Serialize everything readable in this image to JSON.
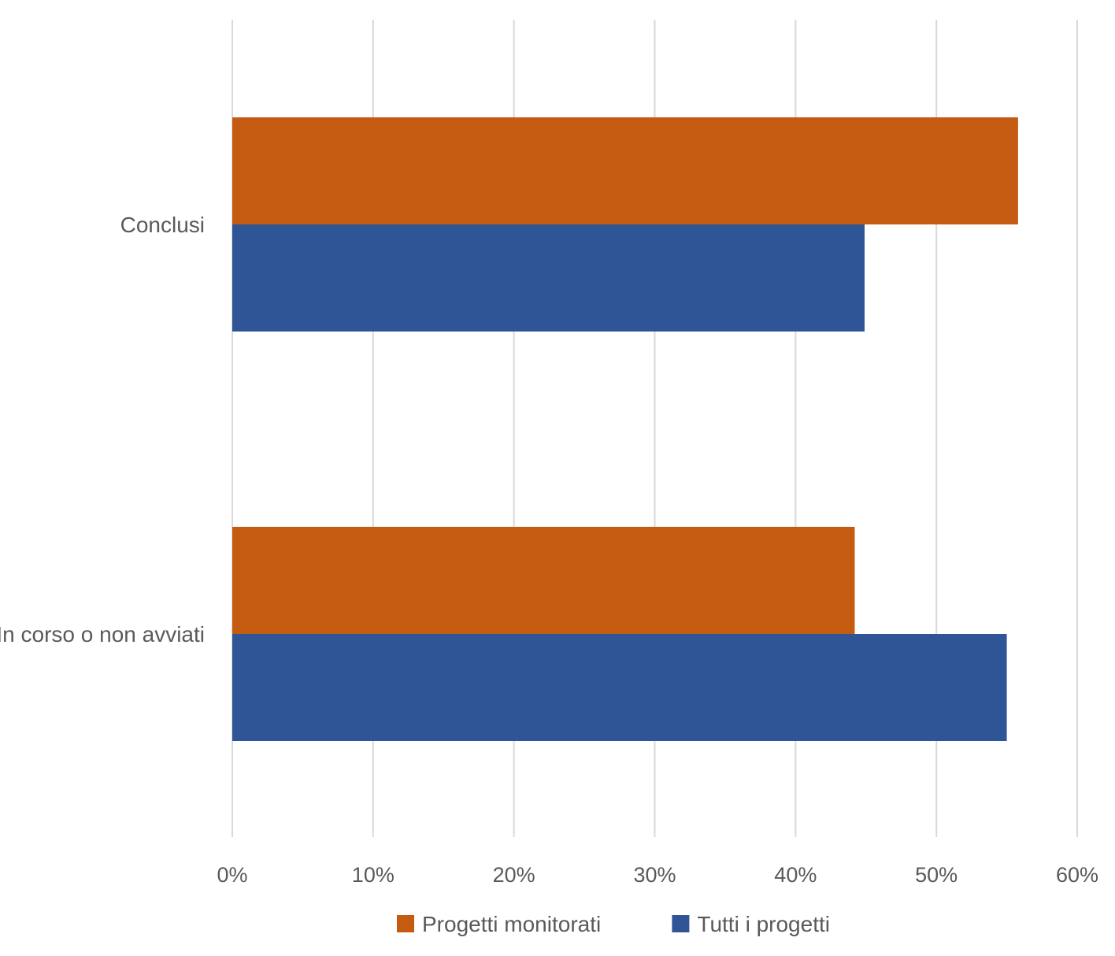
{
  "chart_data": {
    "type": "bar",
    "orientation": "horizontal",
    "categories": [
      "Conclusi",
      "In corso o non avviati"
    ],
    "series": [
      {
        "name": "Progetti monitorati",
        "color": "#C55A11",
        "values": [
          55.8,
          44.2
        ]
      },
      {
        "name": "Tutti i progetti",
        "color": "#2F5597",
        "values": [
          44.9,
          55.0
        ]
      }
    ],
    "xlim": [
      0,
      60
    ],
    "xticks": [
      0,
      10,
      20,
      30,
      40,
      50,
      60
    ],
    "tick_format": "%",
    "grid": "vertical",
    "legend_position": "bottom",
    "title": "",
    "xlabel": "",
    "ylabel": ""
  },
  "colors": {
    "grid": "#d9d9d9",
    "text": "#595959"
  }
}
